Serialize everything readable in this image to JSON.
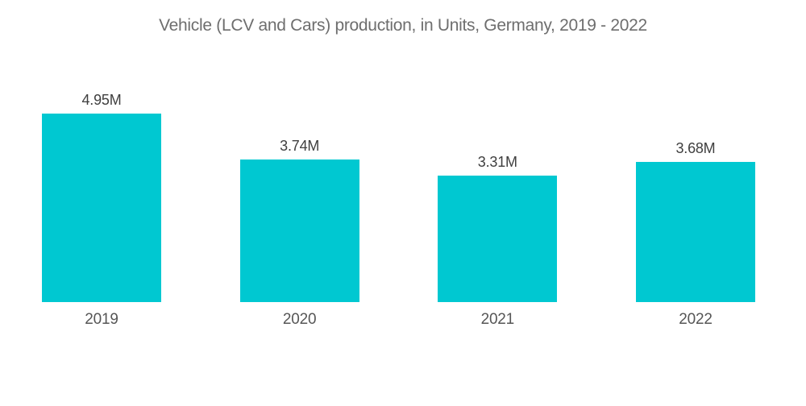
{
  "chart_data": {
    "type": "bar",
    "title": "Vehicle (LCV and Cars) production, in Units, Germany, 2019 - 2022",
    "categories": [
      "2019",
      "2020",
      "2021",
      "2022"
    ],
    "values": [
      4950000,
      3740000,
      3310000,
      3680000
    ],
    "value_labels": [
      "4.95M",
      "3.74M",
      "3.31M",
      "3.68M"
    ],
    "series_unit": "Units",
    "ylim": [
      0,
      5200000
    ],
    "grid": false,
    "legend": false,
    "bar_color": "#00C8D1",
    "title_color": "#6e6e6e",
    "value_label_color": "#3f3f3f",
    "category_label_color": "#565656",
    "background_color": "#ffffff"
  }
}
